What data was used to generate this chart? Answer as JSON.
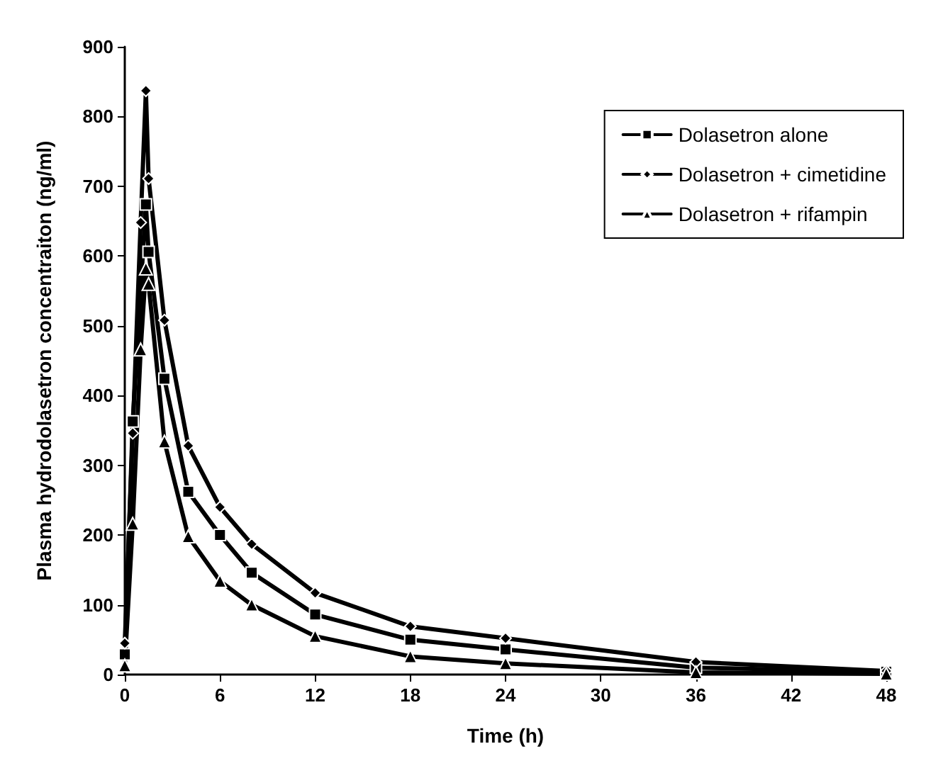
{
  "chart_data": {
    "type": "line",
    "xlabel": "Time (h)",
    "ylabel": "Plasma hydrodolasetron concentraiton (ng/ml)",
    "xlim": [
      0,
      48
    ],
    "xticks": [
      0,
      6,
      12,
      18,
      24,
      30,
      36,
      42,
      48
    ],
    "ylim": [
      0,
      900
    ],
    "yticks": [
      0,
      100,
      200,
      300,
      400,
      500,
      600,
      700,
      800,
      900
    ],
    "grid": false,
    "legend": "top right",
    "line_style": "solid",
    "series": [
      {
        "name": "Dolasetron alone",
        "color": "#000000",
        "marker": "square",
        "x": [
          0,
          0.5,
          1.33,
          1.5,
          2.5,
          4,
          6,
          8,
          12,
          18,
          24,
          36,
          48
        ],
        "values": [
          29,
          363,
          674,
          606,
          424,
          262,
          200,
          146,
          86,
          50,
          36,
          10,
          4
        ]
      },
      {
        "name": "Dolasetron + cimetidine",
        "color": "#000000",
        "marker": "diamond",
        "x": [
          0,
          0.5,
          1,
          1.33,
          1.5,
          2.5,
          4,
          6,
          8,
          12,
          18,
          24,
          36,
          48
        ],
        "values": [
          45,
          346,
          648,
          837,
          711,
          508,
          328,
          240,
          187,
          117,
          69,
          52,
          18,
          5
        ]
      },
      {
        "name": "Dolasetron + rifampin",
        "color": "#000000",
        "marker": "triangle",
        "x": [
          0,
          0.5,
          1,
          1.33,
          1.5,
          2.5,
          4,
          6,
          8,
          12,
          18,
          24,
          36,
          48
        ],
        "values": [
          13,
          216,
          466,
          582,
          560,
          334,
          198,
          134,
          100,
          55,
          26,
          16,
          3,
          1
        ]
      }
    ]
  }
}
